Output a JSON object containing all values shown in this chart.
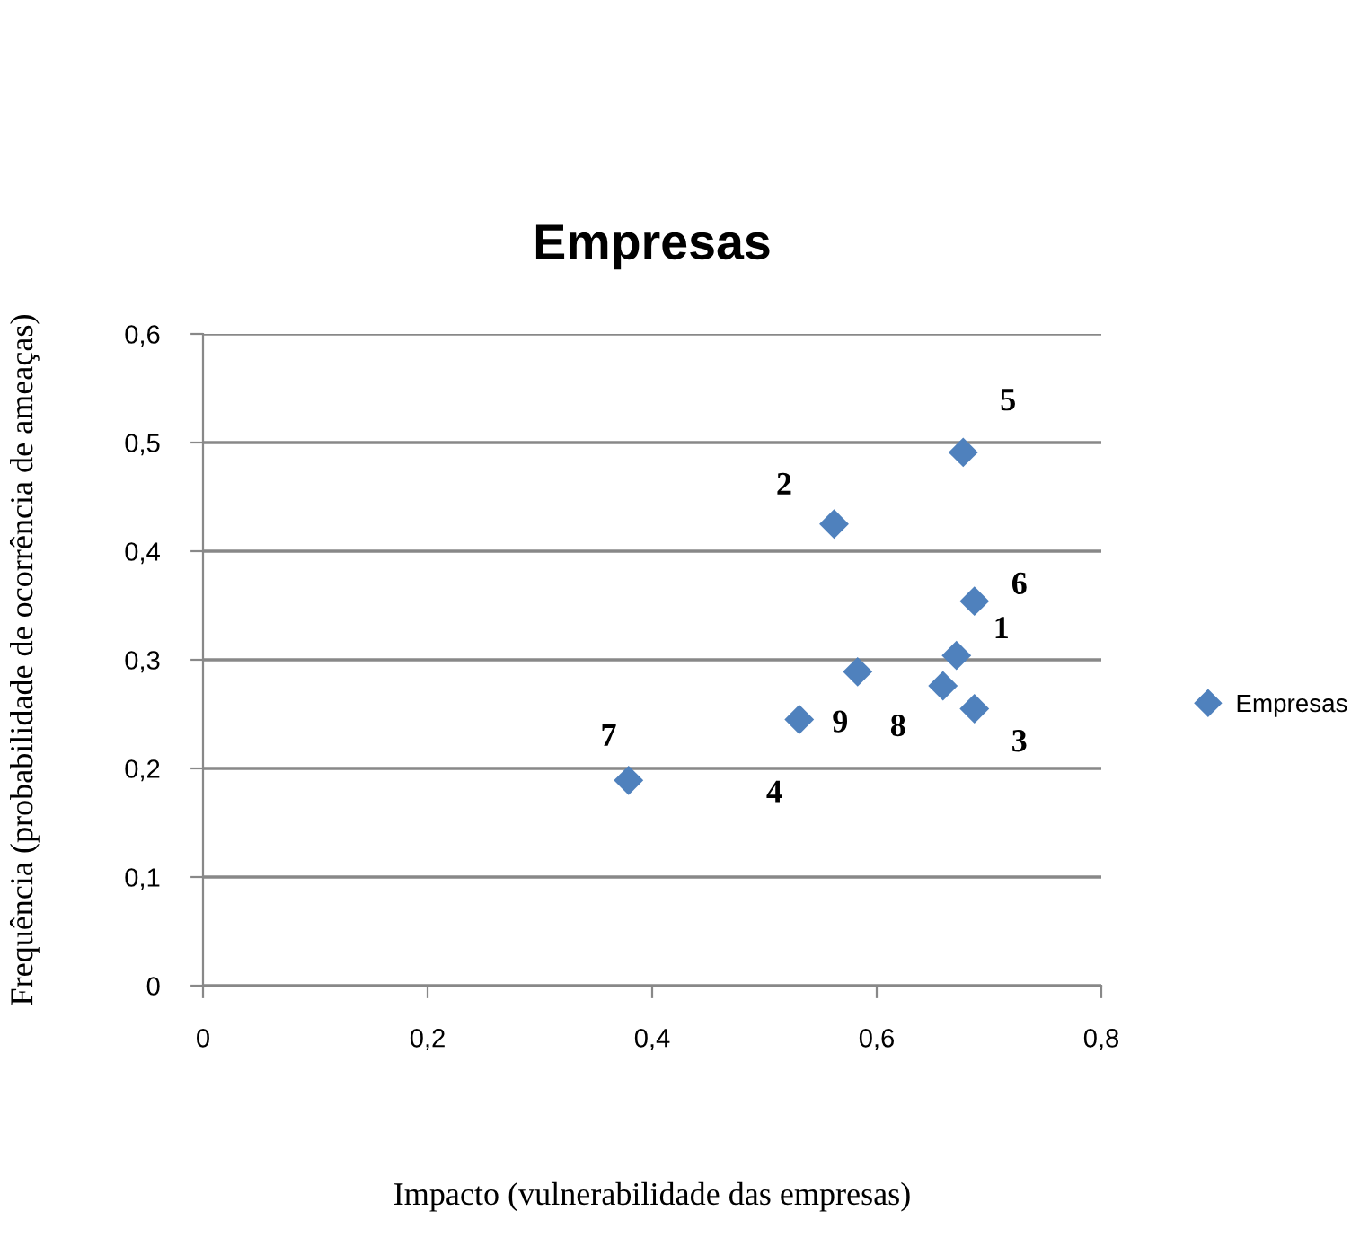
{
  "chart_data": {
    "type": "scatter",
    "title": "Empresas",
    "xlabel": "Impacto (vulnerabilidade das empresas)",
    "ylabel": "Frequência (probabilidade de ocorrência de ameaças)",
    "series": [
      {
        "name": "Empresas",
        "color": "#4f81bd",
        "x": [
          0.671,
          0.562,
          0.687,
          0.531,
          0.677,
          0.687,
          0.379,
          0.659,
          0.583
        ],
        "values": [
          0.304,
          0.425,
          0.255,
          0.245,
          0.491,
          0.354,
          0.189,
          0.276,
          0.289
        ]
      }
    ],
    "annotations": [
      {
        "text": "1",
        "x": 0.671,
        "y": 0.304
      },
      {
        "text": "2",
        "x": 0.562,
        "y": 0.425
      },
      {
        "text": "3",
        "x": 0.687,
        "y": 0.255
      },
      {
        "text": "4",
        "x": 0.531,
        "y": 0.245
      },
      {
        "text": "5",
        "x": 0.677,
        "y": 0.491
      },
      {
        "text": "6",
        "x": 0.687,
        "y": 0.354
      },
      {
        "text": "7",
        "x": 0.379,
        "y": 0.189
      },
      {
        "text": "8",
        "x": 0.659,
        "y": 0.276
      },
      {
        "text": "9",
        "x": 0.583,
        "y": 0.289
      }
    ],
    "xlim": [
      0,
      0.8
    ],
    "xticks": [
      0,
      {
        "value": 0.2,
        "label": "0,2"
      },
      {
        "value": 0.4,
        "label": "0,4"
      },
      {
        "value": 0.6,
        "label": "0,6"
      },
      {
        "value": 0.8,
        "label": "0,8"
      }
    ],
    "ylim": [
      0,
      0.6
    ],
    "yticks": [
      0,
      {
        "value": 0.1,
        "label": "0,1"
      },
      {
        "value": 0.2,
        "label": "0,2"
      },
      {
        "value": 0.3,
        "label": "0,3"
      },
      {
        "value": 0.4,
        "label": "0,4"
      },
      {
        "value": 0.5,
        "label": "0,5"
      },
      {
        "value": 0.6,
        "label": "0,6"
      }
    ],
    "grid": "y",
    "legend": "right",
    "marker": "diamond"
  }
}
